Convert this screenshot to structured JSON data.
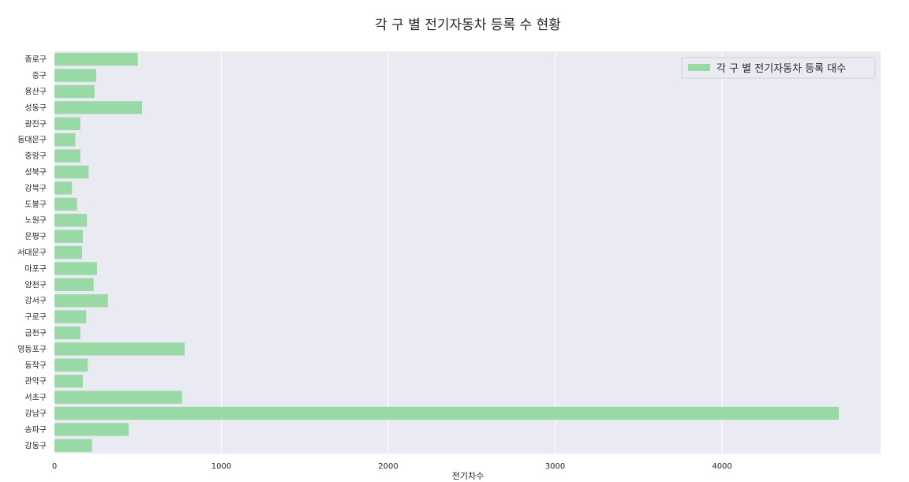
{
  "chart_data": {
    "type": "bar",
    "orientation": "horizontal",
    "title": "각 구 별 전기자동차 등록 수 현황",
    "xlabel": "전기차수",
    "ylabel": "",
    "xlim": [
      0,
      4950
    ],
    "xticks": [
      0,
      1000,
      2000,
      3000,
      4000
    ],
    "grid": true,
    "legend_position": "top-right",
    "colors": {
      "bar": "#98d9a6",
      "plot_background": "#eaeaf2",
      "grid": "#ffffff",
      "page_background": "#ffffff"
    },
    "categories": [
      "종로구",
      "중구",
      "용산구",
      "성동구",
      "광진구",
      "동대문구",
      "중랑구",
      "성북구",
      "강북구",
      "도봉구",
      "노원구",
      "은평구",
      "서대문구",
      "마포구",
      "양천구",
      "강서구",
      "구로구",
      "금천구",
      "영등포구",
      "동작구",
      "관악구",
      "서초구",
      "강남구",
      "송파구",
      "강동구"
    ],
    "series": [
      {
        "name": "각 구 별 전기자동차 등록 대수",
        "values": [
          500,
          250,
          240,
          525,
          155,
          125,
          155,
          205,
          105,
          135,
          195,
          170,
          165,
          255,
          235,
          320,
          190,
          155,
          780,
          200,
          170,
          765,
          4700,
          445,
          225
        ]
      }
    ]
  }
}
